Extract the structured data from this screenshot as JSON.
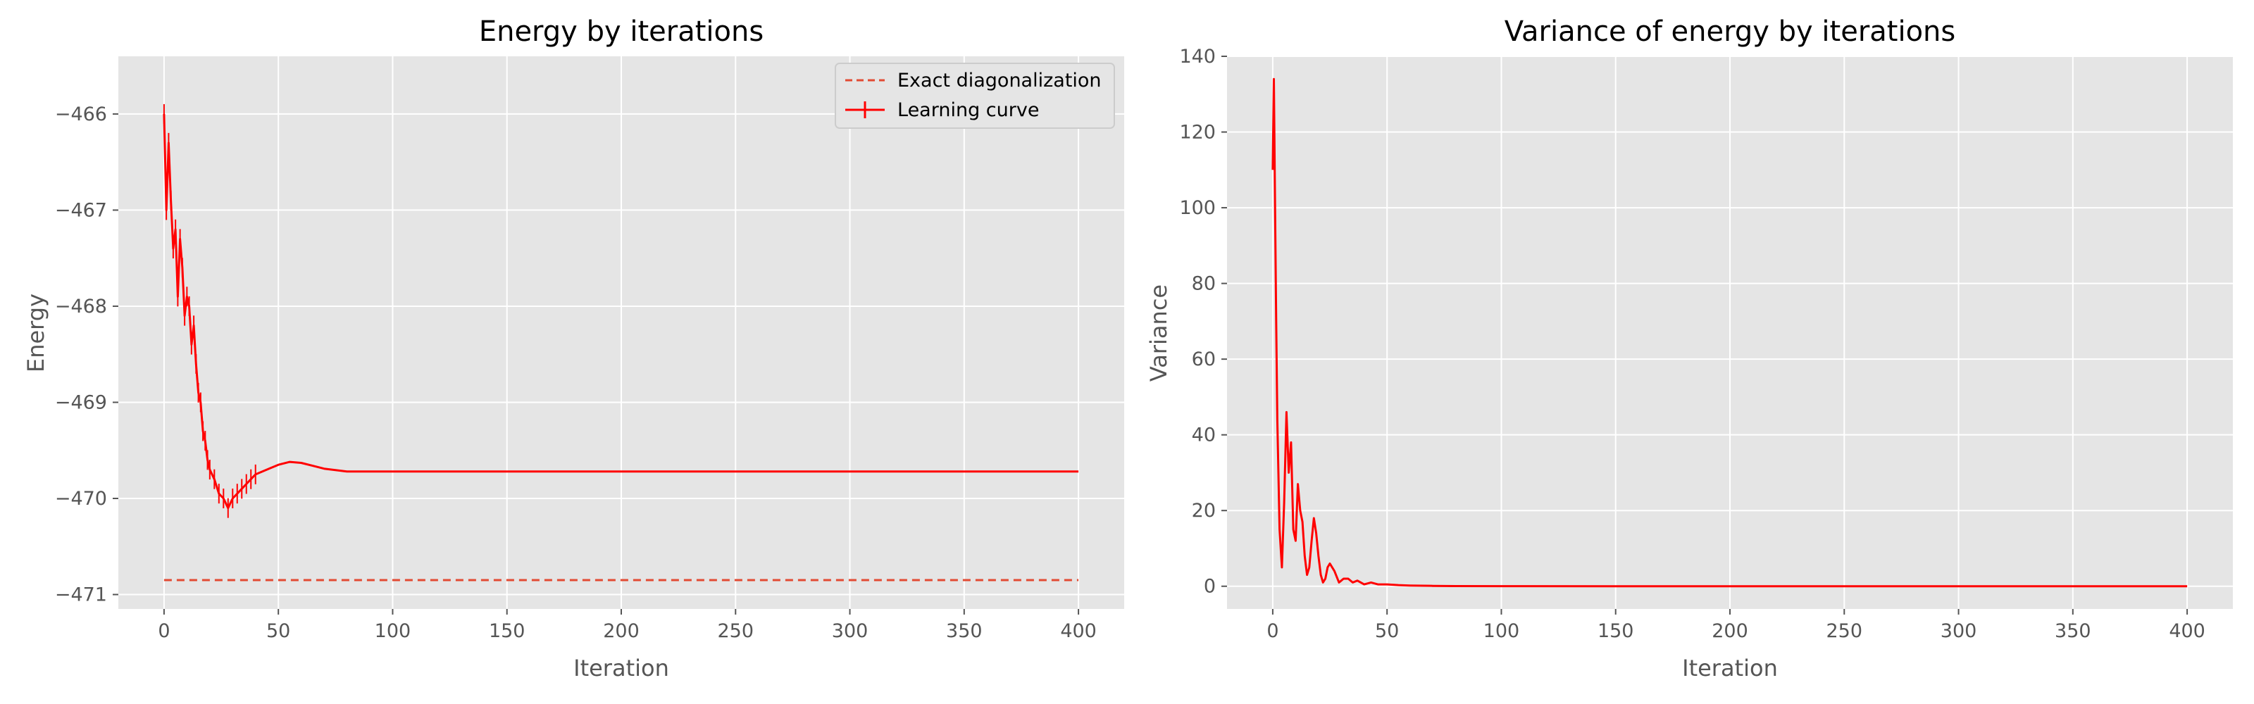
{
  "chart_data": [
    {
      "type": "line",
      "title": "Energy by iterations",
      "xlabel": "Iteration",
      "ylabel": "Energy",
      "xlim": [
        -20,
        420
      ],
      "ylim": [
        -471.15,
        -465.4
      ],
      "xticks": [
        0,
        50,
        100,
        150,
        200,
        250,
        300,
        350,
        400
      ],
      "yticks": [
        -471,
        -470,
        -469,
        -468,
        -467,
        -466
      ],
      "grid": true,
      "legend_position": "top-right",
      "legend": [
        "Exact diagonalization",
        "Learning curve"
      ],
      "series": [
        {
          "name": "Exact diagonalization",
          "style": "dashed",
          "color": "#e24a33",
          "x": [
            0,
            400
          ],
          "y": [
            -470.85,
            -470.85
          ]
        },
        {
          "name": "Learning curve",
          "style": "solid-with-errorbars",
          "color": "#ff0000",
          "x": [
            0,
            1,
            2,
            3,
            4,
            5,
            6,
            7,
            8,
            9,
            10,
            11,
            12,
            13,
            14,
            15,
            16,
            17,
            18,
            19,
            20,
            22,
            24,
            26,
            28,
            30,
            32,
            34,
            36,
            38,
            40,
            45,
            50,
            55,
            60,
            65,
            70,
            80,
            90,
            100,
            125,
            150,
            175,
            200,
            250,
            300,
            350,
            400
          ],
          "y": [
            -466.0,
            -467.0,
            -466.3,
            -466.9,
            -467.4,
            -467.2,
            -467.9,
            -467.3,
            -467.6,
            -468.1,
            -467.9,
            -468.0,
            -468.4,
            -468.2,
            -468.6,
            -468.9,
            -469.0,
            -469.3,
            -469.4,
            -469.6,
            -469.7,
            -469.8,
            -469.95,
            -470.0,
            -470.1,
            -470.0,
            -469.95,
            -469.9,
            -469.85,
            -469.8,
            -469.75,
            -469.7,
            -469.65,
            -469.62,
            -469.63,
            -469.66,
            -469.69,
            -469.72,
            -469.72,
            -469.72,
            -469.72,
            -469.72,
            -469.72,
            -469.72,
            -469.72,
            -469.72,
            -469.72,
            -469.72
          ]
        }
      ]
    },
    {
      "type": "line",
      "title": "Variance of energy by iterations",
      "xlabel": "Iteration",
      "ylabel": "Variance",
      "xlim": [
        -20,
        420
      ],
      "ylim": [
        -6,
        140
      ],
      "xticks": [
        0,
        50,
        100,
        150,
        200,
        250,
        300,
        350,
        400
      ],
      "yticks": [
        0,
        20,
        40,
        60,
        80,
        100,
        120,
        140
      ],
      "grid": true,
      "series": [
        {
          "color": "#ff0000",
          "x": [
            0,
            0.5,
            1,
            1.5,
            2,
            3,
            4,
            5,
            6,
            7,
            8,
            9,
            10,
            11,
            12,
            13,
            14,
            15,
            16,
            17,
            18,
            19,
            20,
            21,
            22,
            23,
            24,
            25,
            27,
            29,
            31,
            33,
            35,
            37,
            40,
            43,
            46,
            50,
            55,
            60,
            70,
            80,
            100,
            150,
            200,
            300,
            400
          ],
          "y": [
            110,
            134,
            100,
            70,
            44,
            15,
            5,
            22,
            46,
            30,
            38,
            15,
            12,
            27,
            20,
            17,
            8,
            3,
            5,
            12,
            18,
            14,
            8,
            3,
            1,
            2,
            5,
            6,
            4,
            1,
            2,
            2,
            1,
            1.5,
            0.5,
            1,
            0.5,
            0.5,
            0.3,
            0.2,
            0.1,
            0.05,
            0.02,
            0.01,
            0.01,
            0.01,
            0.01
          ]
        }
      ]
    }
  ]
}
